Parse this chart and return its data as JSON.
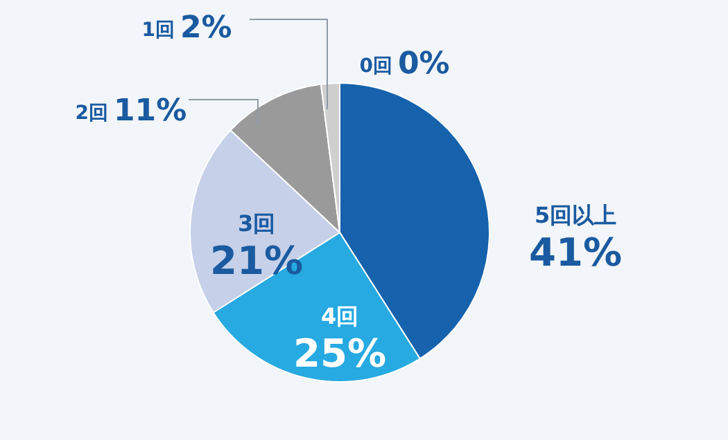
{
  "chart_data": {
    "type": "pie",
    "categories": [
      "5回以上",
      "4回",
      "3回",
      "2回",
      "1回",
      "0回"
    ],
    "values": [
      41,
      25,
      21,
      11,
      2,
      0
    ],
    "value_labels": [
      "41%",
      "25%",
      "21%",
      "11%",
      "2%",
      "0%"
    ],
    "colors": [
      "#1662ad",
      "#27a9e1",
      "#c6d0e9",
      "#9a9a9a",
      "#cfcfcf",
      "#e0e0e0"
    ]
  }
}
